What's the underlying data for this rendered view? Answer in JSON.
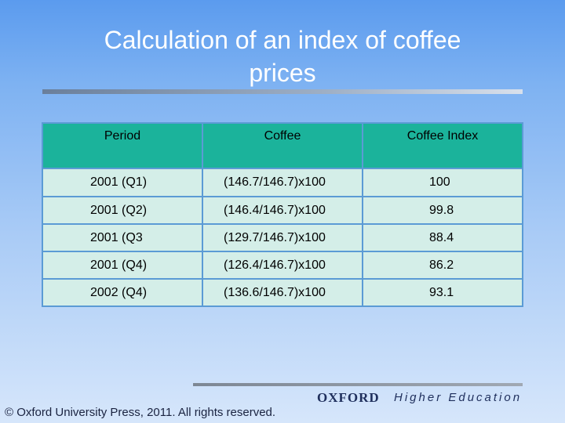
{
  "slide": {
    "title_line1": "Calculation of an index of coffee",
    "title_line2": "prices"
  },
  "table": {
    "headers": [
      "Period",
      "Coffee",
      "Coffee Index"
    ],
    "rows": [
      [
        "2001 (Q1)",
        "(146.7/146.7)x100",
        "100"
      ],
      [
        "2001 (Q2)",
        "(146.4/146.7)x100",
        "99.8"
      ],
      [
        "2001 (Q3",
        "(129.7/146.7)x100",
        "88.4"
      ],
      [
        "2001 (Q4)",
        "(126.4/146.7)x100",
        "86.2"
      ],
      [
        "2002 (Q4)",
        "(136.6/146.7)x100",
        "93.1"
      ]
    ]
  },
  "footer": {
    "publisher_logo": "OXFORD",
    "imprint": "Higher Education",
    "copyright": "© Oxford University Press, 2011. All rights reserved."
  },
  "colors": {
    "header_fill": "#1bb39b",
    "row_fill": "#d4eee8",
    "grid": "#5b9bd5"
  }
}
